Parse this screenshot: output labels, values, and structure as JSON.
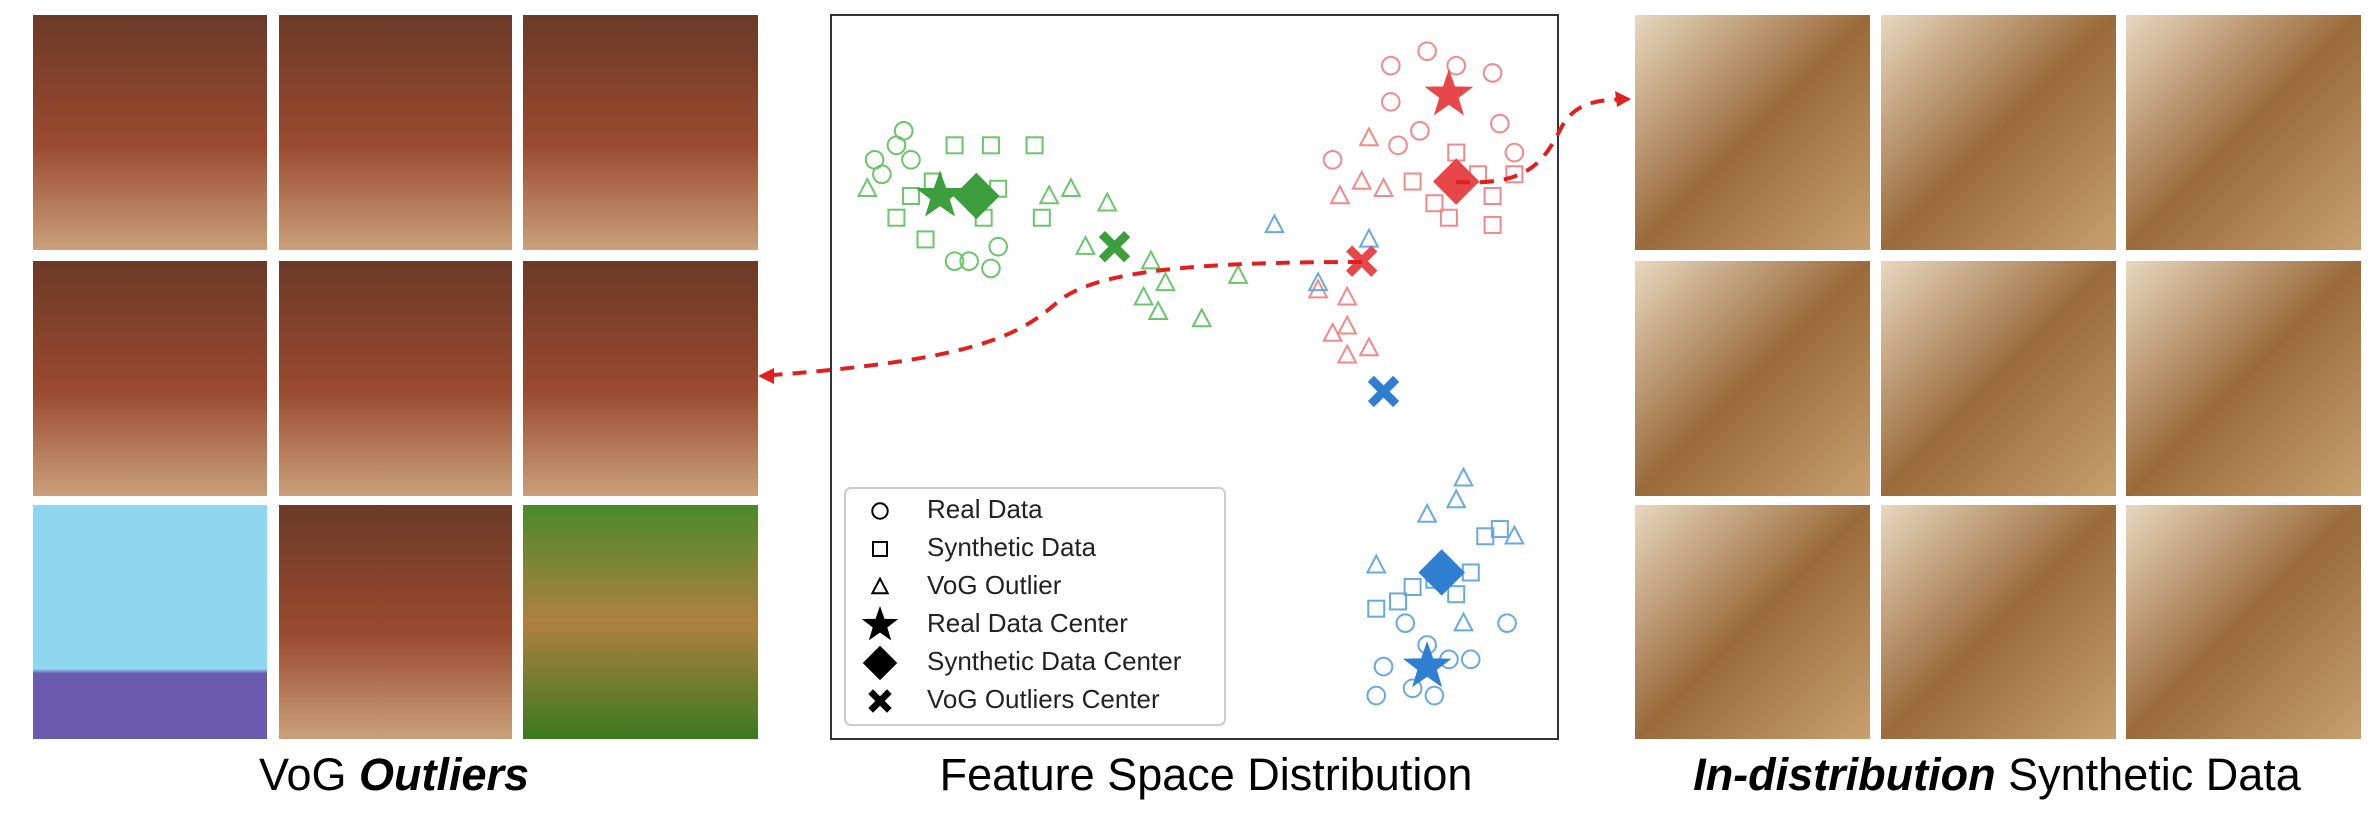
{
  "left_caption": {
    "plain": "VoG",
    "emphasis": "Outliers"
  },
  "right_caption": {
    "emphasis": "In-distribution",
    "plain": "Synthetic Data"
  },
  "chart_data": {
    "type": "scatter",
    "title": "Feature Space Distribution",
    "xlim": [
      0,
      100
    ],
    "ylim": [
      0,
      100
    ],
    "series": [
      {
        "name": "Real Data",
        "marker": "circle",
        "groups": [
          {
            "color": "#6cc46c",
            "x": [
              10,
              9,
              11,
              7,
              19,
              22,
              23,
              17,
              6
            ],
            "y": [
              84,
              82,
              80,
              78,
              66,
              65,
              68,
              66,
              80
            ]
          },
          {
            "color": "#f08a8a",
            "x": [
              77,
              82,
              86,
              91,
              77,
              92,
              69,
              81,
              94,
              78
            ],
            "y": [
              93,
              95,
              93,
              92,
              88,
              85,
              80,
              84,
              81,
              82
            ]
          },
          {
            "color": "#6aa8e0",
            "x": [
              76,
              80,
              83,
              85,
              88,
              93,
              79,
              82,
              75
            ],
            "y": [
              10,
              7,
              6,
              11,
              11,
              16,
              16,
              13,
              6
            ]
          }
        ]
      },
      {
        "name": "Synthetic Data",
        "marker": "square",
        "groups": [
          {
            "color": "#6cc46c",
            "x": [
              17,
              22,
              28,
              11,
              14,
              21,
              23,
              29,
              13,
              9
            ],
            "y": [
              82,
              82,
              82,
              75,
              77,
              72,
              76,
              72,
              69,
              72
            ]
          },
          {
            "color": "#f08a8a",
            "x": [
              86,
              89,
              94,
              91,
              83,
              91,
              85,
              80
            ],
            "y": [
              81,
              78,
              78,
              75,
              74,
              71,
              72,
              77
            ]
          },
          {
            "color": "#6aa8e0",
            "x": [
              75,
              78,
              83,
              90,
              92,
              80,
              86,
              88
            ],
            "y": [
              18,
              19,
              22,
              28,
              29,
              21,
              20,
              23
            ]
          }
        ]
      },
      {
        "name": "VoG Outlier",
        "marker": "triangle",
        "groups": [
          {
            "color": "#6cc46c",
            "x": [
              5,
              30,
              33,
              38,
              35,
              44,
              46,
              43,
              45,
              51,
              56
            ],
            "y": [
              76,
              75,
              76,
              74,
              68,
              66,
              63,
              61,
              59,
              58,
              64
            ]
          },
          {
            "color": "#f08a8a",
            "x": [
              74,
              73,
              70,
              76,
              71,
              71,
              74,
              71,
              69,
              67
            ],
            "y": [
              83,
              77,
              75,
              76,
              61,
              57,
              54,
              53,
              56,
              62
            ]
          },
          {
            "color": "#6aa8e0",
            "x": [
              86,
              87,
              82,
              75,
              94,
              87,
              61,
              67,
              74
            ],
            "y": [
              33,
              36,
              31,
              24,
              28,
              16,
              71,
              63,
              69
            ]
          }
        ]
      },
      {
        "name": "Real Data Center",
        "marker": "star",
        "groups": [
          {
            "color": "#3c9e3c",
            "x": [
              15
            ],
            "y": [
              75
            ]
          },
          {
            "color": "#e8474a",
            "x": [
              85
            ],
            "y": [
              89
            ]
          },
          {
            "color": "#2f7fd0",
            "x": [
              82
            ],
            "y": [
              10
            ]
          }
        ]
      },
      {
        "name": "Synthetic Data Center",
        "marker": "diamond",
        "groups": [
          {
            "color": "#3c9e3c",
            "x": [
              20
            ],
            "y": [
              75
            ]
          },
          {
            "color": "#e8474a",
            "x": [
              86
            ],
            "y": [
              77
            ]
          },
          {
            "color": "#2f7fd0",
            "x": [
              84
            ],
            "y": [
              23
            ]
          }
        ]
      },
      {
        "name": "VoG Outliers Center",
        "marker": "cross",
        "groups": [
          {
            "color": "#3c9e3c",
            "x": [
              39
            ],
            "y": [
              68
            ]
          },
          {
            "color": "#e8474a",
            "x": [
              73
            ],
            "y": [
              66
            ]
          },
          {
            "color": "#2f7fd0",
            "x": [
              76
            ],
            "y": [
              48
            ]
          }
        ]
      }
    ]
  }
}
